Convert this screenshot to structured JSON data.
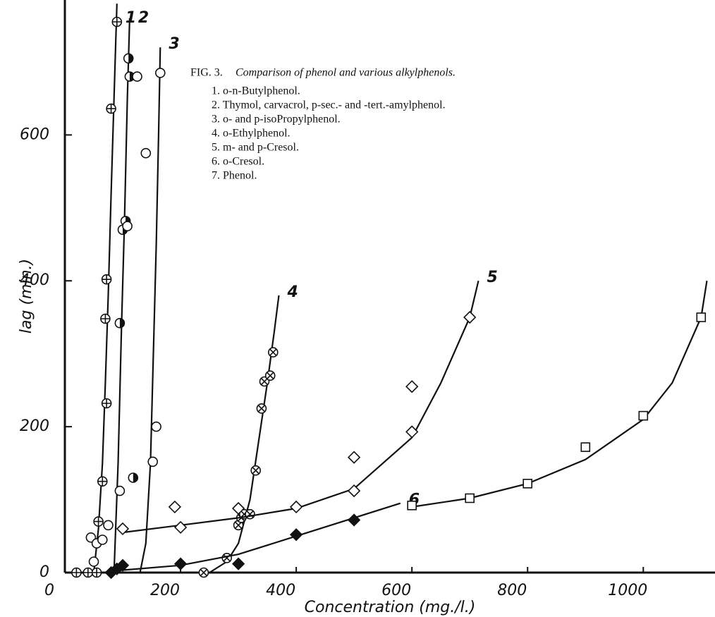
{
  "chart_data": {
    "type": "scatter",
    "figure_label": "FIG. 3.",
    "title": "Comparison of phenol and various alkylphenols.",
    "x_label": "Concentration (mg./l.)",
    "y_label": "lag (min.)",
    "xlim": [
      0,
      1124
    ],
    "ylim": [
      0,
      785
    ],
    "xticks": [
      0,
      200,
      400,
      600,
      800,
      1000
    ],
    "yticks": [
      0,
      200,
      400,
      600
    ],
    "grid": false,
    "series": [
      {
        "name": "1. o-n-Butylphenol.",
        "label": "1",
        "color": "#111111",
        "marker": "circle-plus",
        "x": [
          20,
          40,
          55,
          58,
          65,
          72,
          70,
          72,
          80,
          90
        ],
        "values": [
          0,
          0,
          0,
          70,
          125,
          232,
          348,
          402,
          636,
          755
        ],
        "fit_x": [
          50,
          58,
          65,
          70,
          75,
          80,
          85,
          90
        ],
        "fit_y": [
          0,
          60,
          150,
          260,
          380,
          520,
          650,
          780
        ]
      },
      {
        "name": "2. Thymol, carvacrol, p-sec.- and -tert.-amylphenol.",
        "label": "2",
        "color": "#111111",
        "marker": "half-circle",
        "x": [
          95,
          100,
          105,
          110,
          112,
          118
        ],
        "values": [
          342,
          470,
          482,
          705,
          680,
          130
        ],
        "fit_x": [
          85,
          92,
          98,
          103,
          108,
          112
        ],
        "fit_y": [
          0,
          150,
          340,
          480,
          650,
          760
        ]
      },
      {
        "name": "3. o- and p-isoPropylphenol.",
        "label": "3",
        "color": "#111111",
        "marker": "circle",
        "x": [
          45,
          50,
          55,
          65,
          75,
          95,
          108,
          125,
          140,
          152,
          158,
          165
        ],
        "values": [
          48,
          15,
          40,
          45,
          65,
          112,
          475,
          680,
          575,
          152,
          200,
          685
        ],
        "fit_x": [
          130,
          140,
          148,
          153,
          158,
          162,
          165
        ],
        "fit_y": [
          0,
          40,
          150,
          300,
          450,
          600,
          720
        ]
      },
      {
        "name": "4. o-Ethylphenol.",
        "label": "4",
        "color": "#111111",
        "marker": "circle-x",
        "x": [
          240,
          280,
          300,
          305,
          310,
          320,
          330,
          340,
          345,
          355,
          360
        ],
        "values": [
          0,
          20,
          65,
          75,
          80,
          80,
          140,
          225,
          262,
          270,
          302
        ],
        "fit_x": [
          250,
          280,
          300,
          320,
          335,
          350,
          362,
          370
        ],
        "fit_y": [
          0,
          15,
          40,
          100,
          180,
          260,
          330,
          380
        ]
      },
      {
        "name": "5. m- and p-Cresol.",
        "label": "5",
        "color": "#111111",
        "marker": "diamond",
        "x": [
          100,
          190,
          200,
          300,
          400,
          500,
          600,
          600,
          500,
          700
        ],
        "values": [
          60,
          90,
          62,
          88,
          90,
          158,
          193,
          255,
          112,
          350
        ],
        "fit_x": [
          100,
          200,
          300,
          400,
          500,
          600,
          650,
          700,
          715
        ],
        "fit_y": [
          55,
          65,
          75,
          88,
          115,
          185,
          260,
          350,
          400
        ]
      },
      {
        "name": "6. o-Cresol.",
        "label": "6",
        "color": "#111111",
        "marker": "filled-diamond",
        "x": [
          80,
          90,
          100,
          200,
          300,
          400,
          500
        ],
        "values": [
          0,
          5,
          10,
          12,
          12,
          52,
          72
        ],
        "fit_x": [
          80,
          200,
          300,
          400,
          500,
          580
        ],
        "fit_y": [
          2,
          10,
          25,
          50,
          75,
          95
        ]
      },
      {
        "name": "7. Phenol.",
        "label": "7",
        "color": "#111111",
        "marker": "square",
        "x": [
          600,
          700,
          800,
          900,
          1000,
          1100
        ],
        "values": [
          92,
          102,
          122,
          172,
          215,
          350
        ],
        "fit_x": [
          600,
          700,
          800,
          900,
          1000,
          1050,
          1100,
          1110
        ],
        "fit_y": [
          90,
          102,
          122,
          155,
          210,
          260,
          350,
          400
        ]
      }
    ]
  }
}
